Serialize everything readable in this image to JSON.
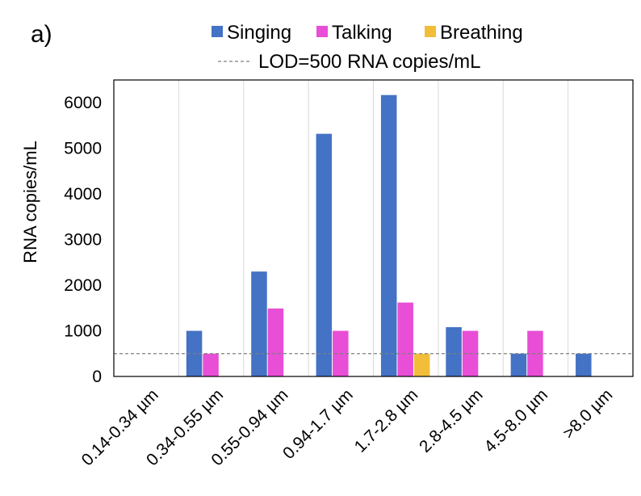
{
  "chart_data": {
    "type": "bar",
    "panel_label": "a)",
    "ylabel": "RNA copies/mL",
    "xlabel": "",
    "ylim": [
      0,
      6500
    ],
    "yticks": [
      0,
      1000,
      2000,
      3000,
      4000,
      5000,
      6000
    ],
    "categories": [
      "0.14-0.34 µm",
      "0.34-0.55 µm",
      "0.55-0.94 µm",
      "0.94-1.7 µm",
      "1.7-2.8 µm",
      "2.8-4.5 µm",
      "4.5-8.0 µm",
      ">8.0 µm"
    ],
    "series": [
      {
        "name": "Singing",
        "color": "#4472C4",
        "values": [
          null,
          1000,
          2300,
          5320,
          6170,
          1080,
          500,
          500
        ]
      },
      {
        "name": "Talking",
        "color": "#E84ED6",
        "values": [
          null,
          500,
          1490,
          1000,
          1620,
          1000,
          1000,
          null
        ]
      },
      {
        "name": "Breathing",
        "color": "#F2BE3A",
        "values": [
          null,
          null,
          null,
          null,
          500,
          null,
          null,
          null
        ]
      }
    ],
    "reference_line": {
      "label": "LOD=500 RNA copies/mL",
      "value": 500,
      "style": "dashed",
      "color": "#808080"
    },
    "legend_position": "top",
    "grid": "vertical category separators"
  }
}
